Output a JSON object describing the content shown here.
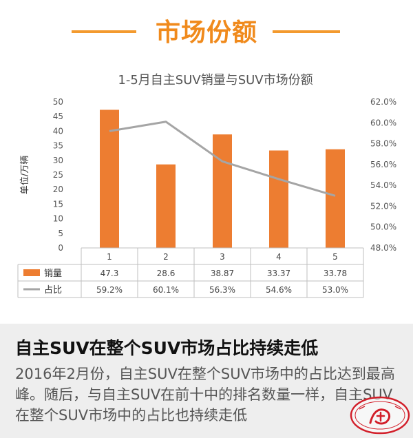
{
  "header": {
    "title": "市场份额"
  },
  "chart_data": {
    "type": "bar",
    "title": "1-5月自主SUV销量与SUV市场份额",
    "ylabel": "单位/万辆",
    "categories": [
      "1",
      "2",
      "3",
      "4",
      "5"
    ],
    "ylim": [
      0,
      50
    ],
    "y_ticks": [
      "0",
      "5",
      "10",
      "15",
      "20",
      "25",
      "30",
      "35",
      "40",
      "45",
      "50"
    ],
    "y2lim": [
      48.0,
      62.0
    ],
    "y2_ticks": [
      "48.0%",
      "50.0%",
      "52.0%",
      "54.0%",
      "56.0%",
      "58.0%",
      "60.0%",
      "62.0%"
    ],
    "grid": false,
    "legend": "data-table-left",
    "series": [
      {
        "name": "销量",
        "type": "bar",
        "axis": "left",
        "color": "#ed7d31",
        "values": [
          47.3,
          28.6,
          38.87,
          33.37,
          33.78
        ],
        "labels": [
          "47.3",
          "28.6",
          "38.87",
          "33.37",
          "33.78"
        ]
      },
      {
        "name": "占比",
        "type": "line",
        "axis": "right",
        "color": "#a5a5a5",
        "values": [
          59.2,
          60.1,
          56.3,
          54.6,
          53.0
        ],
        "labels": [
          "59.2%",
          "60.1%",
          "56.3%",
          "54.6%",
          "53.0%"
        ]
      }
    ]
  },
  "article": {
    "headline": "自主SUV在整个SUV市场占比持续走低",
    "body": "2016年2月份，自主SUV在整个SUV市场中的占比达到最高峰。随后，与自主SUV在前十中的排名数量一样，自主SUV在整个SUV市场中的占比也持续走低"
  },
  "colors": {
    "accent": "#f08a1c",
    "bar": "#ed7d31",
    "line": "#a5a5a5"
  }
}
